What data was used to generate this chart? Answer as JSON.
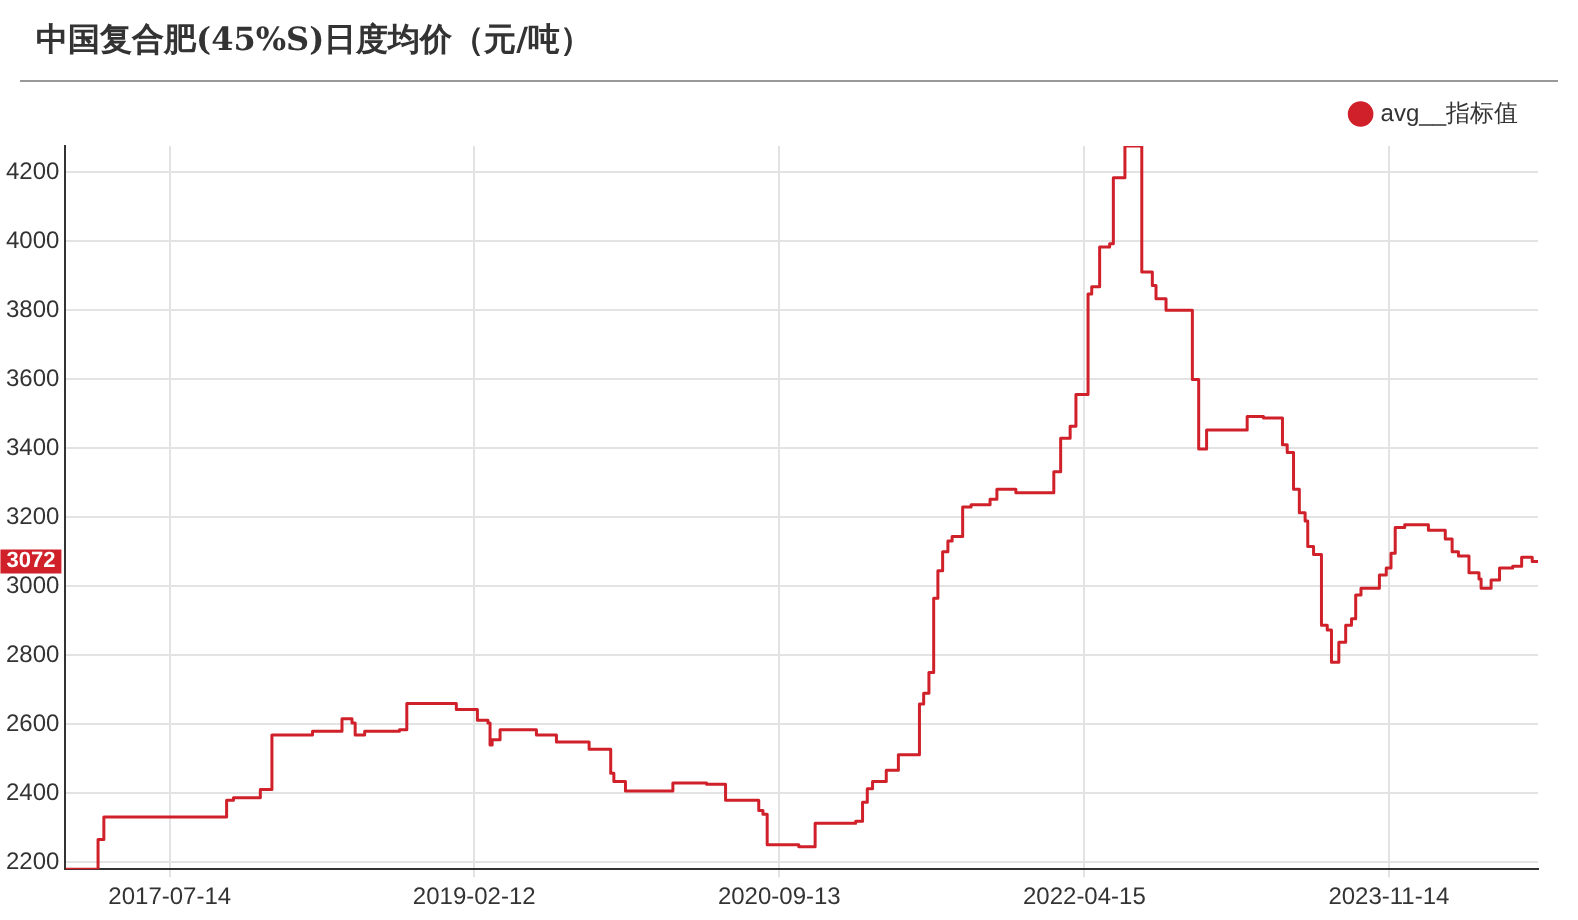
{
  "chart_data": {
    "type": "step",
    "title": "中国复合肥(45%S)日度均价（元/吨）",
    "x": [
      "2016-12-28",
      "2017-02-28",
      "2017-03-11",
      "2017-10-30",
      "2017-11-12",
      "2018-01-02",
      "2018-01-24",
      "2018-04-11",
      "2018-06-06",
      "2018-06-25",
      "2018-07-01",
      "2018-07-19",
      "2018-09-23",
      "2018-10-07",
      "2019-01-09",
      "2019-02-18",
      "2019-03-10",
      "2019-03-14",
      "2019-03-18",
      "2019-04-02",
      "2019-06-10",
      "2019-07-18",
      "2019-09-18",
      "2019-10-29",
      "2019-11-04",
      "2019-11-26",
      "2020-02-24",
      "2020-04-28",
      "2020-06-03",
      "2020-08-05",
      "2020-08-13",
      "2020-08-21",
      "2020-10-20",
      "2020-11-20",
      "2021-02-05",
      "2021-02-18",
      "2021-02-27",
      "2021-03-09",
      "2021-04-04",
      "2021-04-27",
      "2021-06-06",
      "2021-06-14",
      "2021-06-24",
      "2021-07-03",
      "2021-07-11",
      "2021-07-20",
      "2021-07-30",
      "2021-08-07",
      "2021-08-27",
      "2021-09-12",
      "2021-10-18",
      "2021-10-31",
      "2021-12-06",
      "2022-02-16",
      "2022-03-01",
      "2022-03-19",
      "2022-03-30",
      "2022-04-22",
      "2022-04-29",
      "2022-05-14",
      "2022-06-02",
      "2022-06-09",
      "2022-07-01",
      "2022-08-02",
      "2022-08-22",
      "2022-08-29",
      "2022-09-17",
      "2022-11-06",
      "2022-11-18",
      "2022-12-03",
      "2023-02-18",
      "2023-03-21",
      "2023-04-26",
      "2023-05-05",
      "2023-05-17",
      "2023-05-28",
      "2023-06-08",
      "2023-06-13",
      "2023-06-24",
      "2023-07-09",
      "2023-07-20",
      "2023-07-28",
      "2023-08-11",
      "2023-08-24",
      "2023-09-04",
      "2023-09-12",
      "2023-09-22",
      "2023-10-27",
      "2023-11-09",
      "2023-11-18",
      "2023-11-26",
      "2023-12-14",
      "2024-01-28",
      "2024-02-29",
      "2024-03-13",
      "2024-03-25",
      "2024-04-14",
      "2024-05-03",
      "2024-05-07",
      "2024-05-26",
      "2024-06-11",
      "2024-07-06",
      "2024-07-23",
      "2024-08-12",
      "2024-08-23"
    ],
    "series": [
      {
        "name": "avg__指标值",
        "color": "#d0202a",
        "values": [
          2180,
          2266,
          2331,
          2380,
          2387,
          2411,
          2569,
          2580,
          2616,
          2604,
          2569,
          2580,
          2584,
          2660,
          2643,
          2612,
          2604,
          2540,
          2555,
          2584,
          2569,
          2549,
          2528,
          2458,
          2434,
          2407,
          2430,
          2426,
          2380,
          2350,
          2339,
          2251,
          2245,
          2313,
          2319,
          2374,
          2413,
          2434,
          2467,
          2512,
          2659,
          2690,
          2750,
          2965,
          3045,
          3100,
          3131,
          3144,
          3230,
          3236,
          3252,
          3281,
          3271,
          3332,
          3429,
          3464,
          3556,
          3847,
          3868,
          3983,
          3993,
          4184,
          4276,
          3911,
          3872,
          3833,
          3800,
          3599,
          3398,
          3453,
          3492,
          3488,
          3410,
          3388,
          3281,
          3213,
          3189,
          3115,
          3092,
          2887,
          2873,
          2780,
          2838,
          2887,
          2906,
          2975,
          2994,
          3033,
          3053,
          3096,
          3170,
          3178,
          3162,
          3137,
          3100,
          3088,
          3039,
          3021,
          2994,
          3018,
          3053,
          3058,
          3084,
          3072,
          3072
        ]
      }
    ],
    "xlim": [
      "2016-12-28",
      "2024-08-23"
    ],
    "xticks": [
      "2017-07-14",
      "2019-02-12",
      "2020-09-13",
      "2022-04-15",
      "2023-11-14"
    ],
    "ylim": [
      2180,
      4276
    ],
    "yticks": [
      2200,
      2400,
      2600,
      2800,
      3000,
      3200,
      3400,
      3600,
      3800,
      4000,
      4200
    ],
    "annotations": [
      {
        "text": "3072",
        "y": 3072
      }
    ],
    "grid": true,
    "legend": "top right"
  }
}
